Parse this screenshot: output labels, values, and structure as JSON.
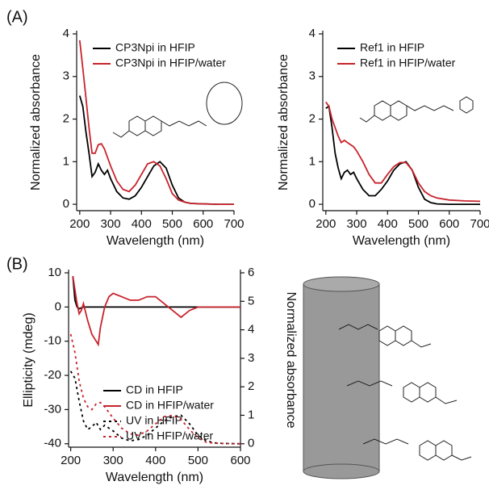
{
  "chart_data": [
    {
      "type": "line",
      "panel_label": "(A)",
      "x_label": "Wavelength (nm)",
      "y_label": "Normalized absorbance",
      "xlim": [
        190,
        700
      ],
      "xticks": [
        200,
        300,
        400,
        500,
        600,
        700
      ],
      "ylim": [
        -0.15,
        4
      ],
      "yticks": [
        0,
        1,
        2,
        3,
        4
      ],
      "x": [
        200,
        210,
        220,
        230,
        240,
        250,
        260,
        270,
        280,
        290,
        300,
        320,
        340,
        360,
        380,
        400,
        420,
        440,
        460,
        480,
        500,
        520,
        540,
        560,
        600,
        650,
        700
      ],
      "series": [
        {
          "name": "CP3Npi in HFIP",
          "color": "#000000",
          "values": [
            2.55,
            2.3,
            1.7,
            1.2,
            0.65,
            0.75,
            0.95,
            0.8,
            0.7,
            0.8,
            0.6,
            0.3,
            0.15,
            0.12,
            0.2,
            0.4,
            0.65,
            0.9,
            1.0,
            0.85,
            0.45,
            0.15,
            0.05,
            0.02,
            0.01,
            0,
            0
          ]
        },
        {
          "name": "CP3Npi in HFIP/water",
          "color": "#c8232c",
          "values": [
            3.85,
            3.2,
            2.5,
            1.8,
            1.2,
            1.2,
            1.4,
            1.42,
            1.3,
            1.1,
            0.9,
            0.55,
            0.35,
            0.3,
            0.45,
            0.7,
            0.95,
            1.0,
            0.9,
            0.6,
            0.25,
            0.1,
            0.05,
            0.02,
            0.01,
            0,
            0
          ]
        }
      ]
    },
    {
      "type": "line",
      "x_label": "Wavelength (nm)",
      "y_label": "Normalized absorbance",
      "xlim": [
        190,
        700
      ],
      "xticks": [
        200,
        300,
        400,
        500,
        600,
        700
      ],
      "ylim": [
        -0.15,
        4
      ],
      "yticks": [
        0,
        1,
        2,
        3,
        4
      ],
      "x": [
        200,
        210,
        220,
        230,
        240,
        250,
        260,
        270,
        280,
        290,
        300,
        320,
        340,
        360,
        380,
        400,
        420,
        440,
        460,
        480,
        500,
        520,
        540,
        560,
        600,
        650,
        700
      ],
      "series": [
        {
          "name": "Ref1 in HFIP",
          "color": "#000000",
          "values": [
            2.25,
            2.3,
            1.8,
            1.2,
            0.85,
            0.6,
            0.75,
            0.8,
            0.7,
            0.75,
            0.6,
            0.35,
            0.2,
            0.2,
            0.35,
            0.55,
            0.8,
            0.95,
            1.0,
            0.8,
            0.4,
            0.12,
            0.04,
            0.01,
            0,
            0,
            0
          ]
        },
        {
          "name": "Ref1 in HFIP/water",
          "color": "#c8232c",
          "values": [
            2.4,
            2.3,
            2.0,
            1.8,
            1.6,
            1.45,
            1.5,
            1.45,
            1.4,
            1.35,
            1.25,
            1.0,
            0.7,
            0.5,
            0.5,
            0.7,
            0.88,
            0.98,
            0.98,
            0.8,
            0.5,
            0.3,
            0.2,
            0.15,
            0.1,
            0.08,
            0.07
          ]
        }
      ]
    },
    {
      "type": "line",
      "panel_label": "(B)",
      "x_label": "Wavelength (nm)",
      "y_label": "Ellipticity (mdeg)",
      "y2_label": "Normalized absorbance",
      "xlim": [
        195,
        600
      ],
      "xticks": [
        200,
        300,
        400,
        500,
        600
      ],
      "ylim": [
        -41,
        10
      ],
      "yticks": [
        -40,
        -30,
        -20,
        -10,
        0,
        10
      ],
      "y2lim": [
        -0.12,
        6
      ],
      "y2ticks": [
        0,
        1,
        2,
        3,
        4,
        5,
        6
      ],
      "series": [
        {
          "name": "CD in HFIP",
          "color": "#000000",
          "dashed": false,
          "x": [
            205,
            210,
            215,
            220,
            230,
            250,
            300,
            350,
            400,
            450,
            500,
            550,
            600
          ],
          "values": [
            9,
            2,
            0,
            -0.5,
            0,
            0,
            0,
            0,
            0,
            0,
            0,
            0,
            0
          ]
        },
        {
          "name": "CD in HFIP/water",
          "color": "#c8232c",
          "dashed": false,
          "x": [
            205,
            210,
            215,
            220,
            225,
            230,
            240,
            250,
            260,
            265,
            270,
            280,
            290,
            300,
            320,
            340,
            360,
            380,
            400,
            420,
            440,
            460,
            480,
            500,
            520,
            550,
            600
          ],
          "values": [
            9,
            5,
            1,
            -2,
            -1,
            1,
            -4,
            -8,
            -10,
            -11,
            -6,
            0,
            3,
            4,
            3,
            2,
            2,
            3,
            3,
            1,
            -1,
            -3,
            -1,
            0,
            0,
            0,
            0
          ]
        },
        {
          "name": "UV in HFIP",
          "color": "#000000",
          "dashed": true,
          "axis": "y2",
          "x": [
            200,
            210,
            220,
            230,
            240,
            250,
            260,
            270,
            280,
            290,
            300,
            320,
            340,
            360,
            380,
            400,
            420,
            440,
            460,
            480,
            500,
            520,
            540,
            560,
            600
          ],
          "values": [
            2.55,
            2.3,
            1.5,
            0.8,
            0.5,
            0.6,
            0.75,
            0.5,
            0.65,
            0.55,
            0.45,
            0.2,
            0.1,
            0.15,
            0.3,
            0.55,
            0.8,
            0.95,
            1.0,
            0.7,
            0.3,
            0.1,
            0.03,
            0.01,
            0
          ]
        },
        {
          "name": "UV in HFIP/water",
          "color": "#c8232c",
          "dashed": true,
          "axis": "y2",
          "x": [
            200,
            210,
            220,
            230,
            240,
            250,
            260,
            270,
            280,
            290,
            300,
            320,
            340,
            360,
            380,
            400,
            420,
            440,
            460,
            480,
            500,
            520,
            540,
            560,
            600
          ],
          "values": [
            3.85,
            3.2,
            2.2,
            1.6,
            1.3,
            1.2,
            1.4,
            1.45,
            1.3,
            1.1,
            0.9,
            0.55,
            0.35,
            0.3,
            0.45,
            0.7,
            0.95,
            1.0,
            0.85,
            0.5,
            0.2,
            0.05,
            0.02,
            0.01,
            0
          ]
        }
      ]
    }
  ]
}
